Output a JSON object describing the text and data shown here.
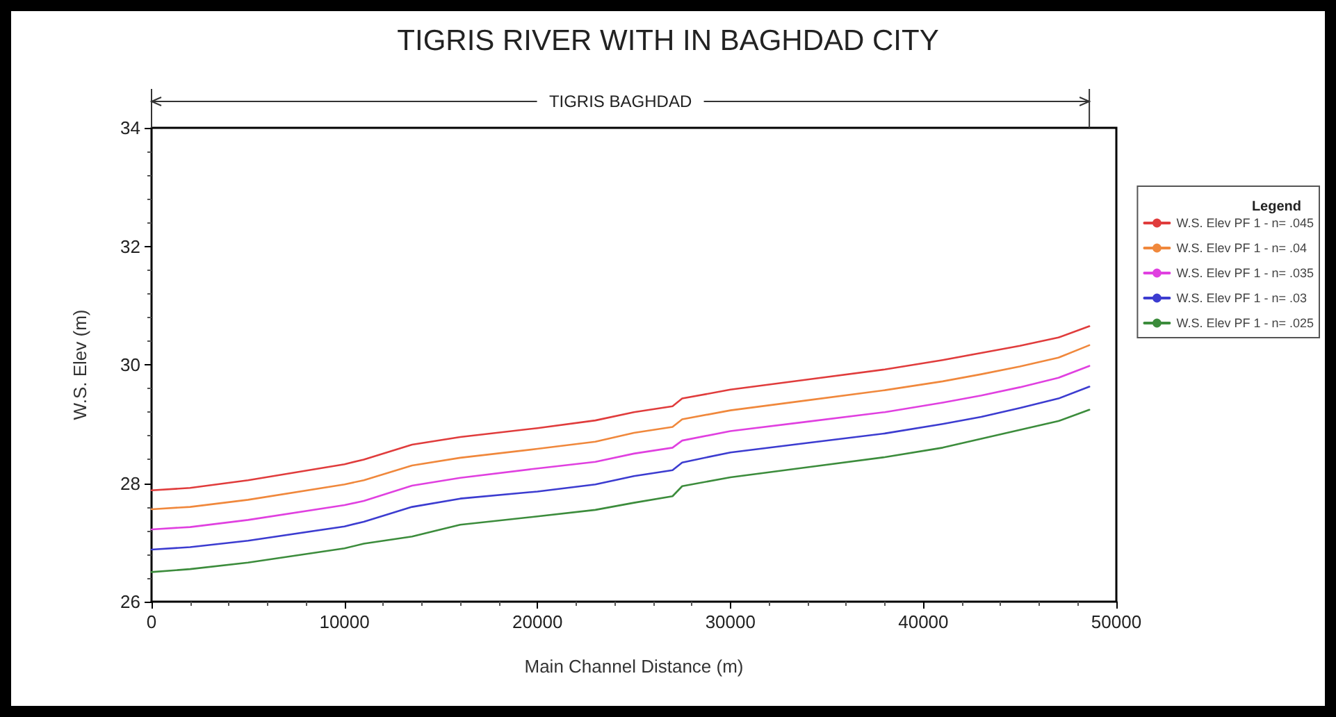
{
  "chart_data": {
    "type": "line",
    "title": "TIGRIS RIVER WITH IN BAGHDAD CITY",
    "xlabel": "Main Channel Distance (m)",
    "ylabel": "W.S. Elev (m)",
    "legend_title": "Legend",
    "annotations": [
      "TIGRIS BAGHDAD"
    ],
    "x": [
      0,
      2000,
      5000,
      10000,
      11000,
      13500,
      16000,
      20000,
      23000,
      25000,
      27000,
      27500,
      30000,
      34000,
      38000,
      41000,
      43000,
      45000,
      47000,
      48600
    ],
    "series": [
      {
        "name": "W.S. Elev PF 1 - n= .045",
        "color": "#e03c3c",
        "values": [
          27.88,
          27.92,
          28.05,
          28.32,
          28.4,
          28.65,
          28.78,
          28.93,
          29.06,
          29.2,
          29.3,
          29.43,
          29.58,
          29.75,
          29.92,
          30.08,
          30.2,
          30.32,
          30.46,
          30.65
        ]
      },
      {
        "name": "W.S. Elev PF 1 - n= .04",
        "color": "#f0883c",
        "values": [
          27.56,
          27.6,
          27.72,
          27.98,
          28.05,
          28.3,
          28.43,
          28.58,
          28.7,
          28.85,
          28.95,
          29.08,
          29.23,
          29.4,
          29.57,
          29.72,
          29.84,
          29.97,
          30.12,
          30.33
        ]
      },
      {
        "name": "W.S. Elev PF 1 - n= .035",
        "color": "#e040e0",
        "values": [
          27.22,
          27.26,
          27.38,
          27.63,
          27.7,
          27.96,
          28.09,
          28.25,
          28.36,
          28.5,
          28.6,
          28.72,
          28.88,
          29.04,
          29.2,
          29.36,
          29.48,
          29.62,
          29.78,
          29.98
        ]
      },
      {
        "name": "W.S. Elev PF 1 - n= .03",
        "color": "#3c3cd0",
        "values": [
          26.88,
          26.92,
          27.03,
          27.27,
          27.35,
          27.6,
          27.74,
          27.86,
          27.98,
          28.12,
          28.22,
          28.35,
          28.52,
          28.68,
          28.84,
          29.0,
          29.12,
          29.27,
          29.43,
          29.63
        ]
      },
      {
        "name": "W.S. Elev PF 1 - n= .025",
        "color": "#3c8c3c",
        "values": [
          26.5,
          26.55,
          26.66,
          26.9,
          26.98,
          27.1,
          27.3,
          27.44,
          27.55,
          27.67,
          27.78,
          27.95,
          28.1,
          28.27,
          28.44,
          28.6,
          28.75,
          28.9,
          29.05,
          29.24
        ]
      }
    ],
    "xlim": [
      0,
      50000
    ],
    "xticks": [
      0,
      10000,
      20000,
      30000,
      40000,
      50000
    ],
    "ylim": [
      26,
      34
    ],
    "yticks": [
      26,
      28,
      30,
      32,
      34
    ],
    "grid": false,
    "legend": "right",
    "marker": "none",
    "line_style": "solid"
  }
}
